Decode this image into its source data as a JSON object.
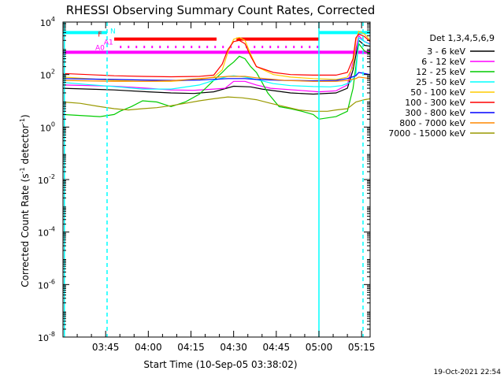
{
  "chart_data": {
    "type": "line",
    "title": "RHESSI Observing Summary Count Rates, Corrected",
    "xlabel": "Start Time (10-Sep-05 03:38:02)",
    "ylabel_main": "Corrected Count Rate (s",
    "ylabel_sup1": "-1",
    "ylabel_mid": " detector",
    "ylabel_sup2": "-1",
    "ylabel_end": ")",
    "x_range_min": [
      -8,
      100
    ],
    "y_log_range": [
      -8,
      4
    ],
    "x_ticks": [
      {
        "t": 7,
        "label": "03:45"
      },
      {
        "t": 22,
        "label": "04:00"
      },
      {
        "t": 37,
        "label": "04:15"
      },
      {
        "t": 52,
        "label": "04:30"
      },
      {
        "t": 67,
        "label": "04:45"
      },
      {
        "t": 82,
        "label": "05:00"
      },
      {
        "t": 97,
        "label": "05:15"
      }
    ],
    "y_ticks": [
      {
        "exp": 4,
        "base": "10",
        "sup": "4"
      },
      {
        "exp": 2,
        "base": "10",
        "sup": "2"
      },
      {
        "exp": 0,
        "base": "10",
        "sup": "0"
      },
      {
        "exp": -2,
        "base": "10",
        "sup": "-2"
      },
      {
        "exp": -4,
        "base": "10",
        "sup": "-4"
      },
      {
        "exp": -6,
        "base": "10",
        "sup": "-6"
      },
      {
        "exp": -8,
        "base": "10",
        "sup": "-8"
      }
    ],
    "legend_title": "Det 1,3,4,5,6,9",
    "series": [
      {
        "name": "3 - 6 keV",
        "color": "#000000",
        "values": [
          [
            -8,
            30
          ],
          [
            10,
            26
          ],
          [
            22,
            22
          ],
          [
            30,
            20
          ],
          [
            38,
            19
          ],
          [
            45,
            22
          ],
          [
            52,
            36
          ],
          [
            58,
            34
          ],
          [
            62,
            28
          ],
          [
            72,
            20
          ],
          [
            80,
            18
          ],
          [
            88,
            20
          ],
          [
            92,
            30
          ],
          [
            94,
            150
          ],
          [
            96,
            2000
          ],
          [
            98,
            1300
          ],
          [
            100,
            1200
          ]
        ]
      },
      {
        "name": "6 - 12 keV",
        "color": "#ff00ff",
        "values": [
          [
            -8,
            40
          ],
          [
            10,
            36
          ],
          [
            22,
            30
          ],
          [
            30,
            26
          ],
          [
            38,
            25
          ],
          [
            45,
            28
          ],
          [
            49,
            30
          ],
          [
            52,
            55
          ],
          [
            56,
            55
          ],
          [
            60,
            40
          ],
          [
            65,
            30
          ],
          [
            75,
            25
          ],
          [
            82,
            22
          ],
          [
            88,
            24
          ],
          [
            92,
            40
          ],
          [
            94,
            300
          ],
          [
            96,
            3000
          ],
          [
            98,
            1800
          ],
          [
            100,
            1500
          ]
        ]
      },
      {
        "name": "12 - 25 keV",
        "color": "#00cc00",
        "values": [
          [
            -8,
            3
          ],
          [
            5,
            2.5
          ],
          [
            10,
            3
          ],
          [
            12,
            4
          ],
          [
            16,
            6
          ],
          [
            20,
            10
          ],
          [
            25,
            9
          ],
          [
            30,
            6
          ],
          [
            35,
            9
          ],
          [
            40,
            18
          ],
          [
            45,
            60
          ],
          [
            48,
            120
          ],
          [
            50,
            200
          ],
          [
            52,
            300
          ],
          [
            54,
            500
          ],
          [
            56,
            400
          ],
          [
            58,
            200
          ],
          [
            60,
            120
          ],
          [
            62,
            50
          ],
          [
            64,
            20
          ],
          [
            68,
            6
          ],
          [
            72,
            5
          ],
          [
            76,
            4
          ],
          [
            80,
            3
          ],
          [
            82,
            2
          ],
          [
            88,
            2.5
          ],
          [
            92,
            4
          ],
          [
            94,
            30
          ],
          [
            96,
            1500
          ],
          [
            98,
            800
          ],
          [
            100,
            600
          ]
        ]
      },
      {
        "name": "25 - 50 keV",
        "color": "#00ffff",
        "values": [
          [
            -8,
            50
          ],
          [
            0,
            42
          ],
          [
            10,
            35
          ],
          [
            20,
            28
          ],
          [
            30,
            28
          ],
          [
            40,
            40
          ],
          [
            45,
            60
          ],
          [
            50,
            85
          ],
          [
            52,
            90
          ],
          [
            56,
            80
          ],
          [
            60,
            65
          ],
          [
            66,
            45
          ],
          [
            72,
            38
          ],
          [
            80,
            35
          ],
          [
            86,
            34
          ],
          [
            90,
            38
          ],
          [
            93,
            50
          ],
          [
            95,
            100
          ],
          [
            96,
            2500
          ],
          [
            98,
            1800
          ],
          [
            100,
            1400
          ]
        ]
      },
      {
        "name": "50 - 100 keV",
        "color": "#ffcc00",
        "values": [
          [
            -8,
            80
          ],
          [
            10,
            60
          ],
          [
            20,
            55
          ],
          [
            30,
            55
          ],
          [
            40,
            65
          ],
          [
            45,
            80
          ],
          [
            48,
            150
          ],
          [
            50,
            700
          ],
          [
            52,
            2200
          ],
          [
            54,
            2600
          ],
          [
            56,
            2000
          ],
          [
            58,
            600
          ],
          [
            60,
            200
          ],
          [
            66,
            100
          ],
          [
            72,
            80
          ],
          [
            80,
            70
          ],
          [
            88,
            65
          ],
          [
            92,
            80
          ],
          [
            94,
            200
          ],
          [
            95,
            2000
          ],
          [
            96,
            4500
          ],
          [
            98,
            3500
          ],
          [
            100,
            2000
          ]
        ]
      },
      {
        "name": "100 - 300 keV",
        "color": "#ff0000",
        "values": [
          [
            -8,
            110
          ],
          [
            10,
            90
          ],
          [
            20,
            85
          ],
          [
            30,
            82
          ],
          [
            40,
            85
          ],
          [
            45,
            95
          ],
          [
            48,
            250
          ],
          [
            50,
            900
          ],
          [
            52,
            1800
          ],
          [
            54,
            2000
          ],
          [
            56,
            1500
          ],
          [
            58,
            500
          ],
          [
            60,
            200
          ],
          [
            66,
            120
          ],
          [
            72,
            100
          ],
          [
            80,
            95
          ],
          [
            88,
            95
          ],
          [
            92,
            120
          ],
          [
            94,
            400
          ],
          [
            95,
            2500
          ],
          [
            96,
            3500
          ],
          [
            98,
            2800
          ],
          [
            100,
            1800
          ]
        ]
      },
      {
        "name": "300 - 800 keV",
        "color": "#0000ff",
        "values": [
          [
            -8,
            70
          ],
          [
            10,
            65
          ],
          [
            20,
            62
          ],
          [
            30,
            60
          ],
          [
            40,
            62
          ],
          [
            50,
            70
          ],
          [
            56,
            70
          ],
          [
            60,
            65
          ],
          [
            70,
            60
          ],
          [
            80,
            58
          ],
          [
            88,
            60
          ],
          [
            92,
            70
          ],
          [
            95,
            90
          ],
          [
            96,
            120
          ],
          [
            98,
            110
          ],
          [
            100,
            100
          ]
        ]
      },
      {
        "name": "800 - 7000 keV",
        "color": "#ff8800",
        "values": [
          [
            -8,
            60
          ],
          [
            10,
            55
          ],
          [
            20,
            55
          ],
          [
            30,
            58
          ],
          [
            40,
            70
          ],
          [
            50,
            85
          ],
          [
            56,
            85
          ],
          [
            60,
            75
          ],
          [
            70,
            60
          ],
          [
            80,
            55
          ],
          [
            88,
            55
          ],
          [
            92,
            60
          ],
          [
            95,
            70
          ],
          [
            96,
            80
          ],
          [
            98,
            75
          ],
          [
            100,
            70
          ]
        ]
      },
      {
        "name": "7000 - 15000 keV",
        "color": "#999900",
        "values": [
          [
            -8,
            9
          ],
          [
            -2,
            8
          ],
          [
            5,
            6
          ],
          [
            10,
            5
          ],
          [
            15,
            4.5
          ],
          [
            20,
            5
          ],
          [
            25,
            5.5
          ],
          [
            30,
            6.5
          ],
          [
            35,
            8
          ],
          [
            40,
            10
          ],
          [
            45,
            12
          ],
          [
            50,
            14
          ],
          [
            55,
            13
          ],
          [
            60,
            11
          ],
          [
            65,
            8
          ],
          [
            70,
            6
          ],
          [
            75,
            4.5
          ],
          [
            80,
            4
          ],
          [
            85,
            4
          ],
          [
            88,
            4.5
          ],
          [
            92,
            5
          ],
          [
            95,
            9
          ],
          [
            98,
            11
          ],
          [
            100,
            12
          ]
        ]
      }
    ],
    "bars": [
      {
        "label": "N",
        "color": "#00ffff",
        "level": 3.6,
        "spans": [
          [
            -8,
            7.5
          ],
          [
            82,
            100
          ]
        ]
      },
      {
        "label": "F",
        "color": "#ff0000",
        "level": 3.35,
        "spans": [
          [
            10,
            46
          ],
          [
            53,
            82
          ]
        ]
      },
      {
        "label": "A0",
        "color": "#ff00ff",
        "level": 2.85,
        "spans": [
          [
            -8,
            100
          ]
        ]
      },
      {
        "label": "A1",
        "color": "#ff00ff",
        "level": 3.05,
        "dotted": true,
        "spans": [
          [
            12,
            82
          ]
        ]
      }
    ],
    "vlines": [
      {
        "t": -7.5,
        "style": "solid"
      },
      {
        "t": 7.5,
        "style": "dashed"
      },
      {
        "t": 82,
        "style": "solid"
      },
      {
        "t": 97.5,
        "style": "dashed"
      }
    ]
  },
  "footer": {
    "timestamp": "19-Oct-2021 22:54"
  },
  "colors": {
    "axis": "#000000",
    "background": "#ffffff",
    "markers": "#00ffff"
  }
}
